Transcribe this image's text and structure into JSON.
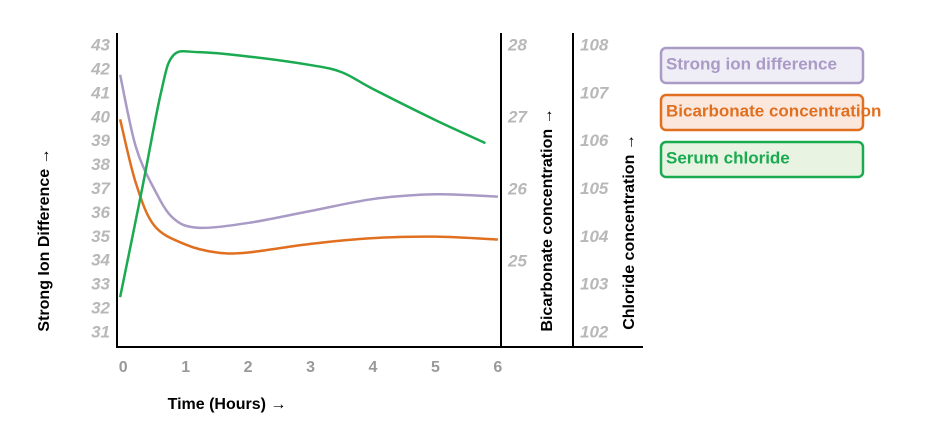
{
  "chart_data": {
    "type": "line",
    "x_label": "Time (Hours) →",
    "y_label": "Strong Ion Difference →",
    "y2_label": "Bicarbonate concentration →",
    "y3_label": "Chloride  concentration →",
    "xlim": [
      -0.1,
      6.05
    ],
    "xticks": [
      0,
      1,
      2,
      3,
      4,
      5,
      6
    ],
    "ylim": [
      30.45,
      43.55
    ],
    "yticks": [
      31,
      32,
      33,
      34,
      35,
      36,
      37,
      38,
      39,
      40,
      41,
      42,
      43
    ],
    "y2lim": [
      23.83,
      28.18
    ],
    "y2ticks": [
      25,
      26,
      27,
      28
    ],
    "y3lim": [
      101.73,
      108.27
    ],
    "y3ticks": [
      102,
      103,
      104,
      105,
      106,
      107,
      108
    ],
    "series": [
      {
        "name": "Strong ion difference",
        "color": "#a99ac6",
        "axis": "y",
        "x": [
          -0.05,
          0.2,
          0.5,
          0.8,
          1.2,
          2,
          3,
          4,
          5,
          6
        ],
        "values": [
          41.8,
          38.8,
          37,
          35.8,
          35.4,
          35.6,
          36.1,
          36.6,
          36.8,
          36.7
        ]
      },
      {
        "name": "Bicarbonate concentration",
        "color": "#e07020",
        "axis": "y2",
        "x": [
          -0.05,
          0.2,
          0.5,
          1,
          1.5,
          2,
          3,
          4,
          5,
          6
        ],
        "values": [
          26.98,
          26.1,
          25.5,
          25.24,
          25.13,
          25.13,
          25.25,
          25.33,
          25.35,
          25.31
        ]
      },
      {
        "name": "Serum chloride",
        "color": "#1aaa50",
        "axis": "y3",
        "x": [
          -0.05,
          0.3,
          0.6,
          0.8,
          1.2,
          2,
          3,
          3.5,
          4,
          5,
          5.8
        ],
        "values": [
          102.75,
          105,
          107,
          107.8,
          107.87,
          107.78,
          107.6,
          107.45,
          107.1,
          106.45,
          105.97
        ]
      }
    ]
  }
}
